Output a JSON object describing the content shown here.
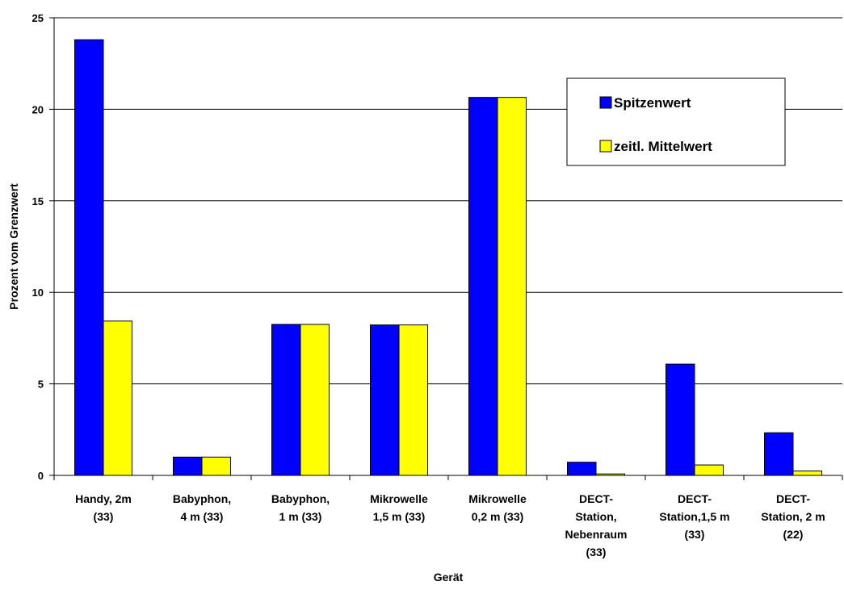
{
  "chart_data": {
    "type": "bar",
    "title": "",
    "xlabel": "Gerät",
    "ylabel": "Prozent vom Grenzwert",
    "ylim": [
      0,
      25
    ],
    "yticks": [
      0,
      5,
      10,
      15,
      20,
      25
    ],
    "grid": true,
    "legend_position": "top-right",
    "categories": [
      [
        "Handy, 2m",
        "(33)"
      ],
      [
        "Babyphon,",
        "4 m (33)"
      ],
      [
        "Babyphon,",
        "1 m (33)"
      ],
      [
        "Mikrowelle",
        "1,5 m (33)"
      ],
      [
        "Mikrowelle",
        "0,2 m (33)"
      ],
      [
        "DECT-",
        "Station,",
        "Nebenraum",
        "(33)"
      ],
      [
        "DECT-",
        "Station,1,5 m",
        "(33)"
      ],
      [
        "DECT-",
        "Station, 2 m",
        "(22)"
      ]
    ],
    "series": [
      {
        "name": "Spitzenwert",
        "color": "#0000ff",
        "values": [
          23.8,
          1.0,
          8.25,
          8.22,
          20.65,
          0.72,
          6.08,
          2.33
        ]
      },
      {
        "name": "zeitl. Mittelwert",
        "color": "#ffff00",
        "values": [
          8.43,
          1.0,
          8.25,
          8.22,
          20.65,
          0.08,
          0.57,
          0.24
        ]
      }
    ]
  }
}
